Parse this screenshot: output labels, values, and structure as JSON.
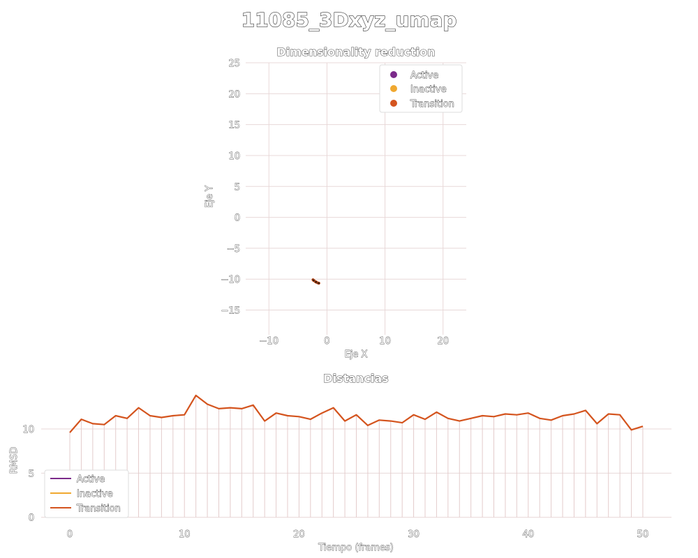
{
  "title": "11085_3Dxyz_umap",
  "scatter": {
    "title": "Dimensionality reduction",
    "xlabel": "Eje X",
    "ylabel": "Eje Y"
  },
  "line": {
    "title": "Distancias",
    "xlabel": "Tiempo (frames)",
    "ylabel": "RMSD"
  },
  "legend": [
    {
      "name": "Active",
      "color": "#7b2a8a"
    },
    {
      "name": "Inactive",
      "color": "#f0a830"
    },
    {
      "name": "Transition",
      "color": "#d4541e"
    }
  ],
  "chart_data": [
    {
      "type": "scatter",
      "title": "Dimensionality reduction",
      "xlabel": "Eje X",
      "ylabel": "Eje Y",
      "xlim": [
        -14,
        24
      ],
      "ylim": [
        -19,
        25
      ],
      "xticks": [
        -10,
        0,
        10,
        20
      ],
      "yticks": [
        -15,
        -10,
        -5,
        0,
        5,
        10,
        15,
        20,
        25
      ],
      "grid": true,
      "legend_position": "top-right",
      "series": [
        {
          "name": "Transition",
          "color": "#d4541e",
          "points": [
            [
              -2.4,
              -10.1
            ],
            [
              -2.2,
              -10.25
            ],
            [
              -2.0,
              -10.4
            ],
            [
              -1.8,
              -10.5
            ],
            [
              -1.6,
              -10.6
            ],
            [
              -1.4,
              -10.65
            ],
            [
              -2.3,
              -10.2
            ],
            [
              -1.9,
              -10.45
            ]
          ]
        }
      ]
    },
    {
      "type": "line",
      "title": "Distancias",
      "xlabel": "Tiempo (frames)",
      "ylabel": "RMSD",
      "xlim": [
        -2.5,
        52.5
      ],
      "ylim": [
        -0.5,
        14.5
      ],
      "xticks": [
        0,
        10,
        20,
        30,
        40,
        50
      ],
      "yticks": [
        0,
        5,
        10
      ],
      "grid": true,
      "legend_position": "lower-left",
      "series": [
        {
          "name": "Transition",
          "color": "#d4541e",
          "x": [
            0,
            1,
            2,
            3,
            4,
            5,
            6,
            7,
            8,
            9,
            10,
            11,
            12,
            13,
            14,
            15,
            16,
            17,
            18,
            19,
            20,
            21,
            22,
            23,
            24,
            25,
            26,
            27,
            28,
            29,
            30,
            31,
            32,
            33,
            34,
            35,
            36,
            37,
            38,
            39,
            40,
            41,
            42,
            43,
            44,
            45,
            46,
            47,
            48,
            49,
            50
          ],
          "values": [
            9.6,
            11.1,
            10.6,
            10.5,
            11.5,
            11.2,
            12.4,
            11.5,
            11.3,
            11.5,
            11.6,
            13.8,
            12.8,
            12.3,
            12.4,
            12.3,
            12.7,
            10.9,
            11.8,
            11.5,
            11.4,
            11.1,
            11.8,
            12.4,
            10.9,
            11.6,
            10.4,
            11.0,
            10.9,
            10.7,
            11.6,
            11.1,
            11.9,
            11.2,
            10.9,
            11.2,
            11.5,
            11.4,
            11.7,
            11.6,
            11.8,
            11.2,
            11.0,
            11.5,
            11.7,
            12.1,
            10.6,
            11.7,
            11.6,
            9.9,
            10.3
          ]
        }
      ]
    }
  ]
}
